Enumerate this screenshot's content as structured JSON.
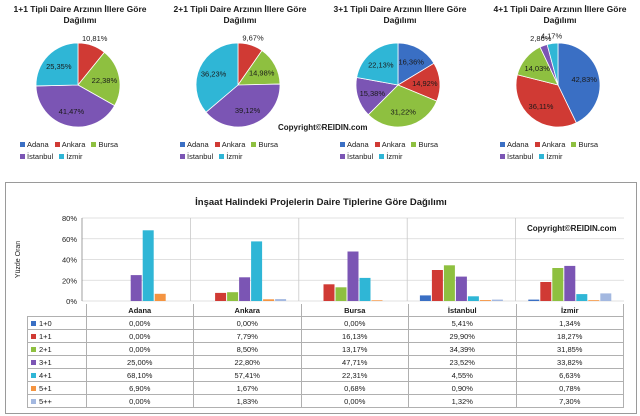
{
  "colors": {
    "Adana": "#3a6fc4",
    "Ankara": "#d03a34",
    "Bursa": "#8ec040",
    "İstanbul": "#7b55b4",
    "İzmir": "#2fb6d6",
    "5+1": "#f49441",
    "5++": "#a3b8e0"
  },
  "copyright": "Copyright©REIDIN.com",
  "chart_data": [
    {
      "type": "pie",
      "title": "1+1 Tipli Daire Arzının İllere Göre Dağılımı",
      "categories": [
        "Adana",
        "Ankara",
        "Bursa",
        "İstanbul",
        "İzmir"
      ],
      "values": [
        0,
        10.81,
        22.38,
        41.47,
        25.35
      ],
      "labels": [
        "",
        "10,81%",
        "22,38%",
        "41,47%",
        "25,35%"
      ]
    },
    {
      "type": "pie",
      "title": "2+1 Tipli Daire Arzının İllere Göre Dağılımı",
      "categories": [
        "Adana",
        "Ankara",
        "Bursa",
        "İstanbul",
        "İzmir"
      ],
      "values": [
        0,
        9.67,
        14.98,
        39.12,
        36.23
      ],
      "labels": [
        "",
        "9,67%",
        "14,98%",
        "39,12%",
        "36,23%"
      ]
    },
    {
      "type": "pie",
      "title": "3+1 Tipli Daire Arzının İllere Göre Dağılımı",
      "categories": [
        "Adana",
        "Ankara",
        "Bursa",
        "İstanbul",
        "İzmir"
      ],
      "values": [
        16.36,
        14.92,
        31.22,
        15.38,
        22.13
      ],
      "labels": [
        "16,36%",
        "14,92%",
        "31,22%",
        "15,38%",
        "22,13%"
      ]
    },
    {
      "type": "pie",
      "title": "4+1 Tipli Daire Arzının İllere Göre Dağılımı",
      "categories": [
        "Adana",
        "Ankara",
        "Bursa",
        "İstanbul",
        "İzmir"
      ],
      "values": [
        42.83,
        36.11,
        14.03,
        2.86,
        4.17
      ],
      "labels": [
        "42,83%",
        "36,11%",
        "14,03%",
        "2,86%",
        "4,17%"
      ]
    },
    {
      "type": "bar",
      "title": "İnşaat Halindeki Projelerin Daire Tiplerine Göre Dağılımı",
      "ylabel": "Yüzde Oran",
      "ylim": [
        0,
        80
      ],
      "yticks": [
        "0%",
        "20%",
        "40%",
        "60%",
        "80%"
      ],
      "grid": true,
      "categories": [
        "Adana",
        "Ankara",
        "Bursa",
        "İstanbul",
        "İzmir"
      ],
      "series": [
        {
          "name": "1+0",
          "values": [
            0,
            0,
            0,
            5.41,
            1.34
          ],
          "labels": [
            "0,00%",
            "0,00%",
            "0,00%",
            "5,41%",
            "1,34%"
          ]
        },
        {
          "name": "1+1",
          "values": [
            0,
            7.79,
            16.13,
            29.9,
            18.27
          ],
          "labels": [
            "0,00%",
            "7,79%",
            "16,13%",
            "29,90%",
            "18,27%"
          ]
        },
        {
          "name": "2+1",
          "values": [
            0,
            8.5,
            13.17,
            34.39,
            31.85
          ],
          "labels": [
            "0,00%",
            "8,50%",
            "13,17%",
            "34,39%",
            "31,85%"
          ]
        },
        {
          "name": "3+1",
          "values": [
            25,
            22.8,
            47.71,
            23.52,
            33.82
          ],
          "labels": [
            "25,00%",
            "22,80%",
            "47,71%",
            "23,52%",
            "33,82%"
          ]
        },
        {
          "name": "4+1",
          "values": [
            68.1,
            57.41,
            22.31,
            4.55,
            6.63
          ],
          "labels": [
            "68,10%",
            "57,41%",
            "22,31%",
            "4,55%",
            "6,63%"
          ]
        },
        {
          "name": "5+1",
          "values": [
            6.9,
            1.67,
            0.68,
            0.9,
            0.78
          ],
          "labels": [
            "6,90%",
            "1,67%",
            "0,68%",
            "0,90%",
            "0,78%"
          ]
        },
        {
          "name": "5++",
          "values": [
            0,
            1.83,
            0,
            1.32,
            7.3
          ],
          "labels": [
            "0,00%",
            "1,83%",
            "0,00%",
            "1,32%",
            "7,30%"
          ]
        }
      ]
    }
  ]
}
